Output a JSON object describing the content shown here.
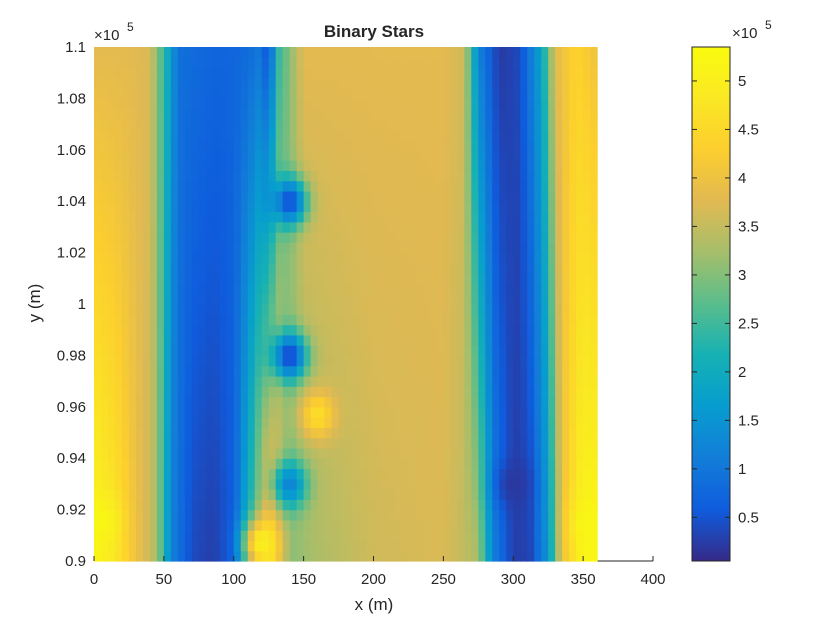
{
  "chart_data": {
    "type": "heatmap",
    "title": "Binary Stars",
    "xlabel": "x (m)",
    "ylabel": "y (m)",
    "xlim": [
      0,
      400
    ],
    "ylim": [
      90000,
      110000
    ],
    "data_xlim": [
      0,
      360
    ],
    "x_ticks": [
      0,
      50,
      100,
      150,
      200,
      250,
      300,
      350,
      400
    ],
    "x_tick_labels": [
      "0",
      "50",
      "100",
      "150",
      "200",
      "250",
      "300",
      "350",
      "400"
    ],
    "y_ticks": [
      90000,
      92000,
      94000,
      96000,
      98000,
      100000,
      102000,
      104000,
      106000,
      108000,
      110000
    ],
    "y_tick_labels": [
      "0.9",
      "0.92",
      "0.94",
      "0.96",
      "0.98",
      "1",
      "1.02",
      "1.04",
      "1.06",
      "1.08",
      "1.1"
    ],
    "y_exponent": "×10",
    "y_exponent_power": "5",
    "colorbar": {
      "colormap": "parula",
      "clim": [
        5000,
        535000
      ],
      "ticks": [
        50000,
        100000,
        150000,
        200000,
        250000,
        300000,
        350000,
        400000,
        450000,
        500000
      ],
      "tick_labels": [
        "0.5",
        "1",
        "1.5",
        "2",
        "2.5",
        "3",
        "3.5",
        "4",
        "4.5",
        "5"
      ],
      "exponent": "×10",
      "exponent_power": "5"
    },
    "profile_bottom": [
      [
        0,
        520000
      ],
      [
        15,
        480000
      ],
      [
        30,
        400000
      ],
      [
        45,
        330000
      ],
      [
        55,
        120000
      ],
      [
        70,
        40000
      ],
      [
        85,
        25000
      ],
      [
        100,
        60000
      ],
      [
        112,
        240000
      ],
      [
        125,
        450000
      ],
      [
        140,
        300000
      ],
      [
        160,
        330000
      ],
      [
        200,
        360000
      ],
      [
        250,
        370000
      ],
      [
        275,
        330000
      ],
      [
        285,
        120000
      ],
      [
        300,
        25000
      ],
      [
        312,
        30000
      ],
      [
        325,
        150000
      ],
      [
        335,
        400000
      ],
      [
        350,
        520000
      ],
      [
        360,
        520000
      ]
    ],
    "profile_top": [
      [
        0,
        380000
      ],
      [
        25,
        380000
      ],
      [
        40,
        370000
      ],
      [
        50,
        240000
      ],
      [
        60,
        90000
      ],
      [
        90,
        70000
      ],
      [
        110,
        80000
      ],
      [
        118,
        100000
      ],
      [
        125,
        40000
      ],
      [
        132,
        240000
      ],
      [
        150,
        380000
      ],
      [
        200,
        380000
      ],
      [
        250,
        380000
      ],
      [
        265,
        360000
      ],
      [
        275,
        120000
      ],
      [
        290,
        20000
      ],
      [
        305,
        40000
      ],
      [
        320,
        180000
      ],
      [
        330,
        380000
      ],
      [
        345,
        440000
      ],
      [
        360,
        400000
      ]
    ],
    "hotspots": [
      {
        "x": 160,
        "y": 95700,
        "value": 460000
      },
      {
        "x": 120,
        "y": 90700,
        "value": 500000
      },
      {
        "x": 5,
        "y": 91600,
        "value": 520000
      },
      {
        "x": 355,
        "y": 91500,
        "value": 520000
      }
    ],
    "coldspots": [
      {
        "x": 140,
        "y": 104000,
        "value": 40000
      },
      {
        "x": 140,
        "y": 98000,
        "value": 30000
      },
      {
        "x": 140,
        "y": 93000,
        "value": 120000
      },
      {
        "x": 300,
        "y": 93000,
        "value": 20000
      }
    ],
    "grid": false
  }
}
